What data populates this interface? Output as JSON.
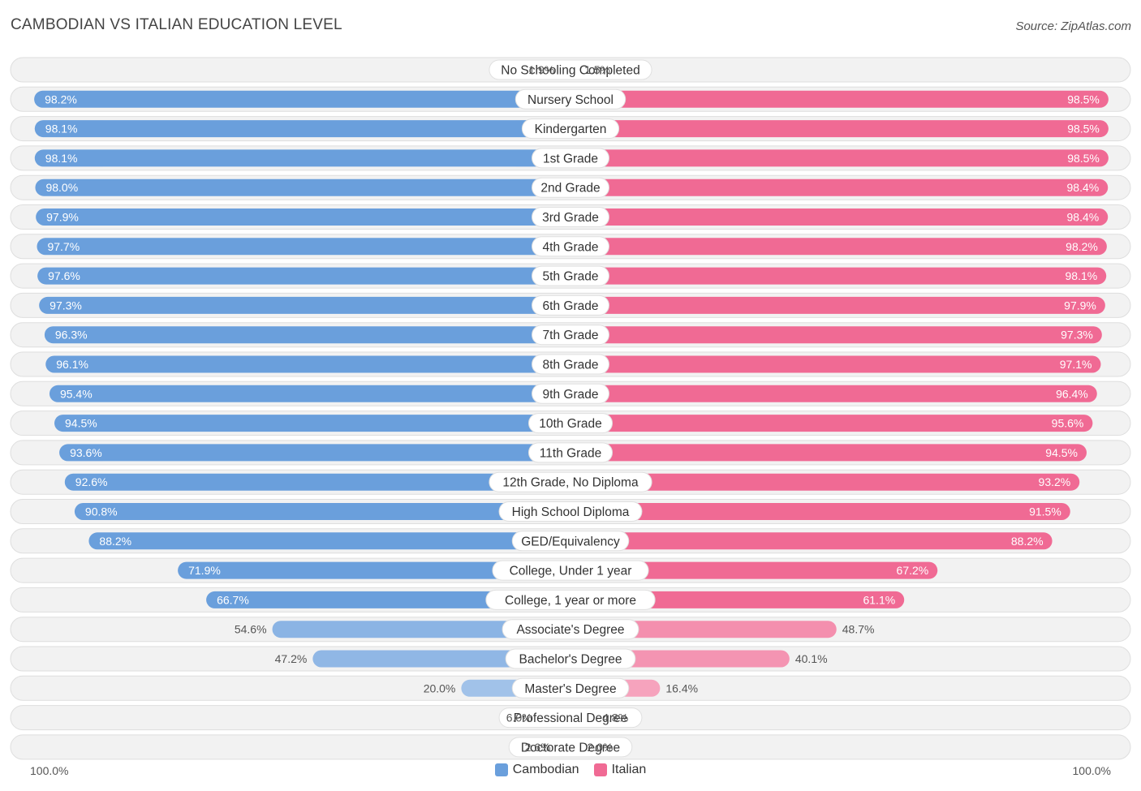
{
  "title": "CAMBODIAN VS ITALIAN EDUCATION LEVEL",
  "source": "Source: ZipAtlas.com",
  "axis": {
    "left_label": "100.0%",
    "right_label": "100.0%"
  },
  "legend": [
    {
      "name": "Cambodian",
      "color": "#6a9fdc"
    },
    {
      "name": "Italian",
      "color": "#f06a94"
    }
  ],
  "chart_data": {
    "type": "bar",
    "orientation": "horizontal-butterfly",
    "title": "CAMBODIAN VS ITALIAN EDUCATION LEVEL",
    "xlim": [
      0,
      100
    ],
    "unit": "%",
    "categories": [
      "No Schooling Completed",
      "Nursery School",
      "Kindergarten",
      "1st Grade",
      "2nd Grade",
      "3rd Grade",
      "4th Grade",
      "5th Grade",
      "6th Grade",
      "7th Grade",
      "8th Grade",
      "9th Grade",
      "10th Grade",
      "11th Grade",
      "12th Grade, No Diploma",
      "High School Diploma",
      "GED/Equivalency",
      "College, Under 1 year",
      "College, 1 year or more",
      "Associate's Degree",
      "Bachelor's Degree",
      "Master's Degree",
      "Professional Degree",
      "Doctorate Degree"
    ],
    "series": [
      {
        "name": "Cambodian",
        "color": "#6a9fdc",
        "values": [
          1.9,
          98.2,
          98.1,
          98.1,
          98.0,
          97.9,
          97.7,
          97.6,
          97.3,
          96.3,
          96.1,
          95.4,
          94.5,
          93.6,
          92.6,
          90.8,
          88.2,
          71.9,
          66.7,
          54.6,
          47.2,
          20.0,
          6.0,
          2.6
        ],
        "labels": [
          "1.9%",
          "98.2%",
          "98.1%",
          "98.1%",
          "98.0%",
          "97.9%",
          "97.7%",
          "97.6%",
          "97.3%",
          "96.3%",
          "96.1%",
          "95.4%",
          "94.5%",
          "93.6%",
          "92.6%",
          "90.8%",
          "88.2%",
          "71.9%",
          "66.7%",
          "54.6%",
          "47.2%",
          "20.0%",
          "6.0%",
          "2.6%"
        ]
      },
      {
        "name": "Italian",
        "color": "#f06a94",
        "values": [
          1.5,
          98.5,
          98.5,
          98.5,
          98.4,
          98.4,
          98.2,
          98.1,
          97.9,
          97.3,
          97.1,
          96.4,
          95.6,
          94.5,
          93.2,
          91.5,
          88.2,
          67.2,
          61.1,
          48.7,
          40.1,
          16.4,
          4.8,
          2.0
        ],
        "labels": [
          "1.5%",
          "98.5%",
          "98.5%",
          "98.5%",
          "98.4%",
          "98.4%",
          "98.2%",
          "98.1%",
          "97.9%",
          "97.3%",
          "97.1%",
          "96.4%",
          "95.6%",
          "94.5%",
          "93.2%",
          "91.5%",
          "88.2%",
          "67.2%",
          "61.1%",
          "48.7%",
          "40.1%",
          "16.4%",
          "4.8%",
          "2.0%"
        ]
      }
    ]
  }
}
